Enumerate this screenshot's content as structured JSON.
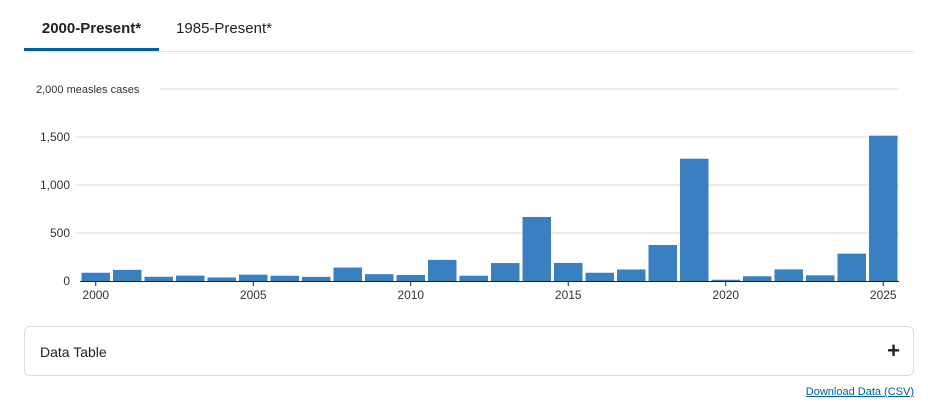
{
  "tabs": [
    {
      "label": "2000-Present*",
      "active": true
    },
    {
      "label": "1985-Present*",
      "active": false
    }
  ],
  "accordion": {
    "label": "Data Table",
    "icon": "plus-icon",
    "icon_glyph": "+"
  },
  "download": {
    "label": "Download Data (CSV)"
  },
  "colors": {
    "bar": "#3a7fc0",
    "accent": "#005ea2",
    "grid": "#d9d9d9"
  },
  "chart_data": {
    "type": "bar",
    "categories": [
      "2000",
      "2001",
      "2002",
      "2003",
      "2004",
      "2005",
      "2006",
      "2007",
      "2008",
      "2009",
      "2010",
      "2011",
      "2012",
      "2013",
      "2014",
      "2015",
      "2016",
      "2017",
      "2018",
      "2019",
      "2020",
      "2021",
      "2022",
      "2023",
      "2024",
      "2025"
    ],
    "values": [
      86,
      116,
      44,
      56,
      37,
      66,
      55,
      43,
      140,
      71,
      63,
      220,
      55,
      187,
      667,
      188,
      86,
      120,
      375,
      1274,
      13,
      49,
      121,
      59,
      285,
      1514
    ],
    "ylim": [
      0,
      2000
    ],
    "yticks": [
      {
        "value": 0,
        "label": "0"
      },
      {
        "value": 500,
        "label": "500"
      },
      {
        "value": 1000,
        "label": "1,000"
      },
      {
        "value": 1500,
        "label": "1,500"
      },
      {
        "value": 2000,
        "label": "2,000 measles cases"
      }
    ],
    "xticks": [
      "2000",
      "2005",
      "2010",
      "2015",
      "2020",
      "2025"
    ],
    "grid": true,
    "legend": "none"
  }
}
